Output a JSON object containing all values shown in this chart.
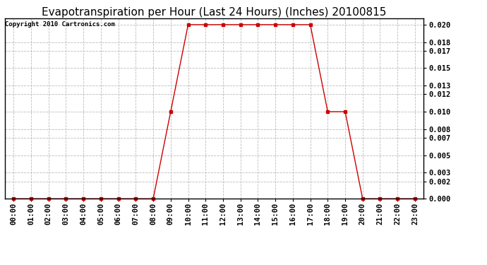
{
  "title": "Evapotranspiration per Hour (Last 24 Hours) (Inches) 20100815",
  "copyright_text": "Copyright 2010 Cartronics.com",
  "hours": [
    "00:00",
    "01:00",
    "02:00",
    "03:00",
    "04:00",
    "05:00",
    "06:00",
    "07:00",
    "08:00",
    "09:00",
    "10:00",
    "11:00",
    "12:00",
    "13:00",
    "14:00",
    "15:00",
    "16:00",
    "17:00",
    "18:00",
    "19:00",
    "20:00",
    "21:00",
    "22:00",
    "23:00"
  ],
  "values": [
    0.0,
    0.0,
    0.0,
    0.0,
    0.0,
    0.0,
    0.0,
    0.0,
    0.0,
    0.01,
    0.02,
    0.02,
    0.02,
    0.02,
    0.02,
    0.02,
    0.02,
    0.02,
    0.01,
    0.01,
    0.0,
    0.0,
    0.0,
    0.0
  ],
  "line_color": "#cc0000",
  "marker": "s",
  "marker_size": 3,
  "bg_color": "#ffffff",
  "grid_color": "#bbbbbb",
  "ylim": [
    0.0,
    0.0207
  ],
  "yticks": [
    0.0,
    0.002,
    0.003,
    0.005,
    0.007,
    0.008,
    0.01,
    0.012,
    0.013,
    0.015,
    0.017,
    0.018,
    0.02
  ],
  "title_fontsize": 11,
  "copyright_fontsize": 6.5,
  "tick_fontsize": 7.5
}
